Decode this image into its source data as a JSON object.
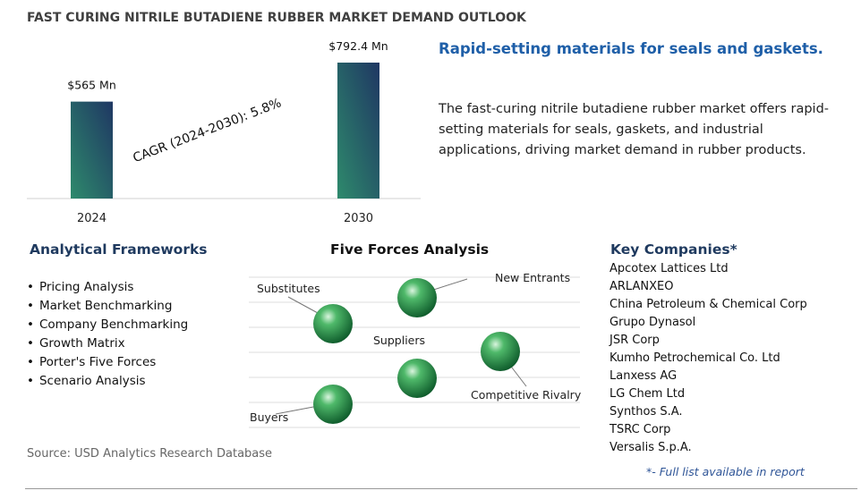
{
  "header": {
    "title": "FAST CURING NITRILE BUTADIENE RUBBER MARKET DEMAND OUTLOOK"
  },
  "chart_data": {
    "type": "bar",
    "categories": [
      "2024",
      "2030"
    ],
    "values": [
      565,
      792.4
    ],
    "value_labels": [
      "$565 Mn",
      "$792.4 Mn"
    ],
    "annotation": "CAGR (2024-2030):  5.8%"
  },
  "summary": {
    "headline": "Rapid-setting materials for seals and gaskets.",
    "text": "The fast-curing nitrile butadiene rubber market offers rapid-setting materials for seals, gaskets, and industrial applications, driving market demand in rubber products."
  },
  "frameworks": {
    "title": "Analytical Frameworks",
    "items": [
      "Pricing Analysis",
      "Market Benchmarking",
      "Company Benchmarking",
      "Growth Matrix",
      "Porter's Five Forces",
      "Scenario Analysis"
    ]
  },
  "five_forces": {
    "title": "Five Forces Analysis",
    "labels": [
      "Substitutes",
      "New Entrants",
      "Suppliers",
      "Competitive Rivalry",
      "Buyers"
    ]
  },
  "companies": {
    "title": "Key Companies*",
    "items": [
      "Apcotex Lattices Ltd",
      "ARLANXEO",
      "China Petroleum & Chemical Corp",
      "Grupo Dynasol",
      "JSR Corp",
      "Kumho Petrochemical Co. Ltd",
      "Lanxess AG",
      "LG Chem Ltd",
      "Synthos S.A.",
      "TSRC Corp",
      "Versalis S.p.A."
    ],
    "note": "*- Full list available in report"
  },
  "source": "Source: USD Analytics Research Database"
}
